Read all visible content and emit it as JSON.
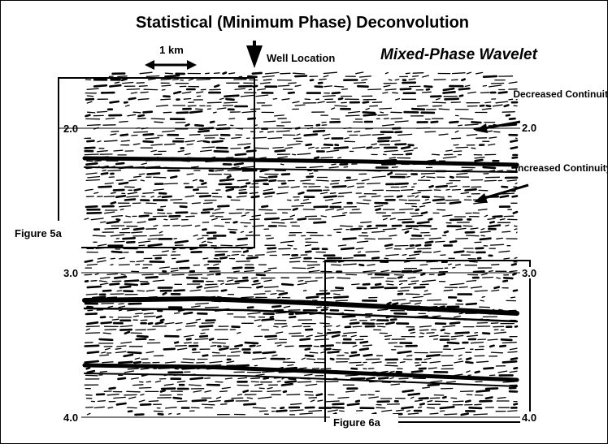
{
  "title": "Statistical  (Minimum Phase)  Deconvolution",
  "scale_label": "1 km",
  "well_label": "Well Location",
  "wavelet_label": "Mixed-Phase Wavelet",
  "annotations": [
    "Decreased Continuity",
    "Increased Continuity"
  ],
  "time_labels_left": [
    "2.0",
    "3.0",
    "4.0"
  ],
  "time_labels_right": [
    "2.0",
    "3.0",
    "4.0"
  ],
  "figure_labels": [
    "Figure 5a",
    "Figure 6a"
  ]
}
